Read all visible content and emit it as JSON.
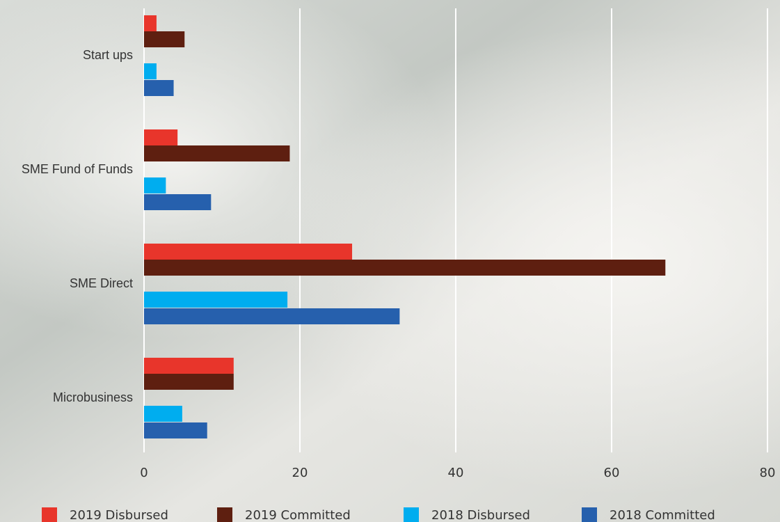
{
  "chart_data": {
    "type": "hbar",
    "categories": [
      "Start ups",
      "SME Fund of Funds",
      "SME Direct",
      "Microbusiness"
    ],
    "series": [
      {
        "name": "2019 Disbursed",
        "color": "#e8352b",
        "values": [
          1.6,
          4.3,
          26.7,
          11.5
        ]
      },
      {
        "name": "2019 Committed",
        "color": "#5e1f10",
        "values": [
          5.2,
          18.7,
          66.9,
          11.5
        ]
      },
      {
        "name": "2018 Disbursed",
        "color": "#00adef",
        "values": [
          1.6,
          2.8,
          18.4,
          4.9
        ]
      },
      {
        "name": "2018 Committed",
        "color": "#2660ad",
        "values": [
          3.8,
          8.6,
          32.8,
          8.1
        ]
      }
    ],
    "xlim": [
      0,
      80
    ],
    "xticks": [
      0,
      20,
      40,
      60,
      80
    ],
    "grid": true
  }
}
